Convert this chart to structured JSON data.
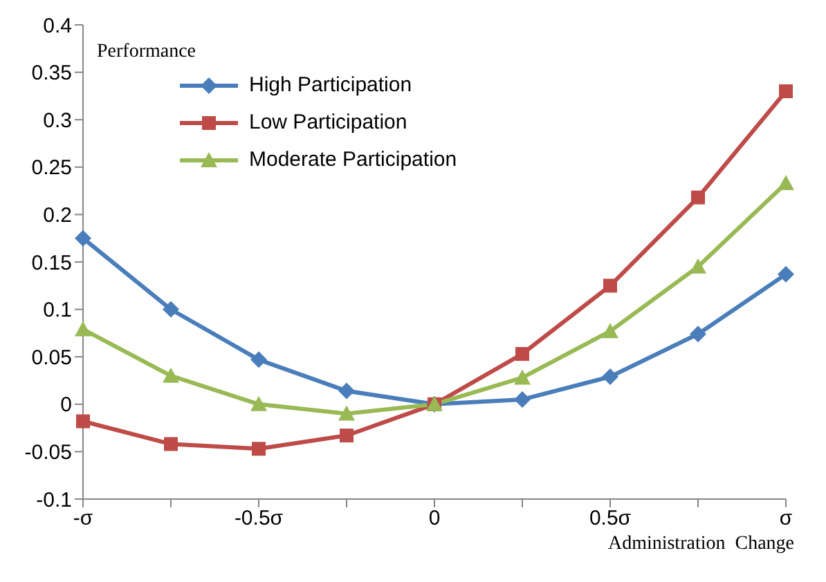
{
  "chart_data": {
    "type": "line",
    "ylabel": "Performance",
    "xlabel": "Administration  Change",
    "categories": [
      "-σ",
      null,
      "-0.5σ",
      null,
      "0",
      null,
      "0.5σ",
      null,
      "σ"
    ],
    "series": [
      {
        "name": "High Participation",
        "color": "#4a7ebb",
        "marker": "diamond",
        "values": [
          0.175,
          0.1,
          0.047,
          0.014,
          0,
          0.005,
          0.029,
          0.074,
          0.137
        ]
      },
      {
        "name": "Low Participation",
        "color": "#be4b48",
        "marker": "square",
        "values": [
          -0.018,
          -0.042,
          -0.047,
          -0.033,
          0,
          0.053,
          0.125,
          0.218,
          0.33
        ]
      },
      {
        "name": "Moderate Participation",
        "color": "#98b954",
        "marker": "triangle",
        "values": [
          0.079,
          0.03,
          0,
          -0.01,
          0,
          0.028,
          0.077,
          0.145,
          0.233
        ]
      }
    ],
    "ylim": [
      -0.1,
      0.4
    ],
    "yticks": [
      -0.1,
      -0.05,
      0,
      0.05,
      0.1,
      0.15,
      0.2,
      0.25,
      0.3,
      0.35,
      0.4
    ],
    "grid": false,
    "legend": "top left",
    "line_style": "solid"
  }
}
